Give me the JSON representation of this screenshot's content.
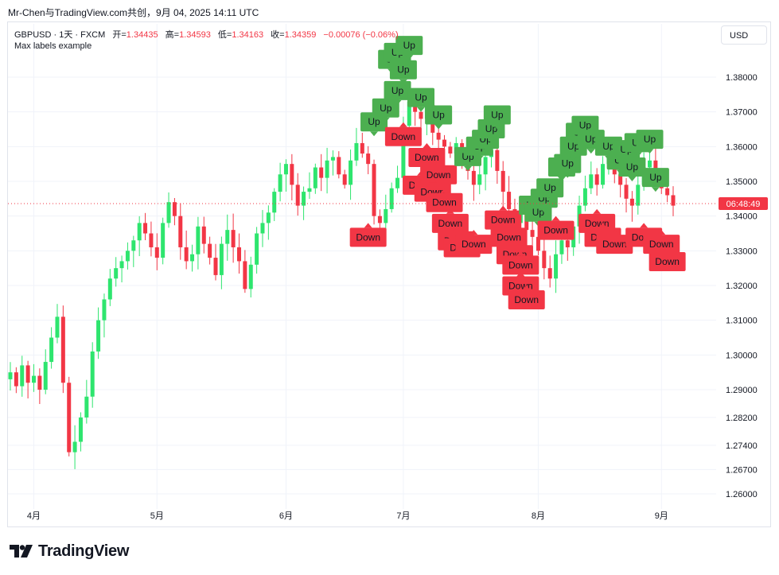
{
  "caption": "Mr-Chen与TradingView.com共创，9月 04, 2025 14:11 UTC",
  "legend": {
    "symbol": "GBPUSD · 1天 · FXCM",
    "open_label": "开=",
    "open": "1.34435",
    "high_label": "高=",
    "high": "1.34593",
    "low_label": "低=",
    "low": "1.34163",
    "close_label": "收=",
    "close": "1.34359",
    "change": "−0.00076 (−0.06%)",
    "indicator": "Max labels example"
  },
  "currency_button": "USD",
  "brand": "TradingView",
  "colors": {
    "up": "#22ab94",
    "down": "#f23645",
    "candle_up": "#2ee56e",
    "candle_down": "#f23645",
    "label_up": "#4caf50",
    "label_down": "#f23645",
    "grid": "#f0f3fa"
  },
  "chart_data": {
    "type": "candlestick",
    "y_axis": {
      "ticks": [
        1.26,
        1.267,
        1.274,
        1.282,
        1.29,
        1.3,
        1.31,
        1.32,
        1.33,
        1.34,
        1.35,
        1.36,
        1.37,
        1.38
      ],
      "tick_labels": [
        "1.26000",
        "1.26700",
        "1.27400",
        "1.28200",
        "1.29000",
        "1.30000",
        "1.31000",
        "1.32000",
        "1.33000",
        "1.34000",
        "1.35000",
        "1.36000",
        "1.37000",
        "1.38000"
      ]
    },
    "x_axis": {
      "month_ticks": [
        {
          "label": "4月",
          "index": 4
        },
        {
          "label": "5月",
          "index": 25
        },
        {
          "label": "6月",
          "index": 47
        },
        {
          "label": "7月",
          "index": 67
        },
        {
          "label": "8月",
          "index": 90
        },
        {
          "label": "9月",
          "index": 111
        }
      ]
    },
    "price_tag": "06:48:49",
    "last_price": 1.34359,
    "closes": [
      1.295,
      1.291,
      1.297,
      1.292,
      1.294,
      1.29,
      1.298,
      1.305,
      1.311,
      1.292,
      1.272,
      1.275,
      1.282,
      1.288,
      1.301,
      1.31,
      1.316,
      1.322,
      1.325,
      1.327,
      1.33,
      1.333,
      1.338,
      1.335,
      1.331,
      1.328,
      1.338,
      1.344,
      1.34,
      1.331,
      1.327,
      1.329,
      1.337,
      1.332,
      1.328,
      1.323,
      1.332,
      1.336,
      1.331,
      1.327,
      1.319,
      1.326,
      1.335,
      1.338,
      1.341,
      1.347,
      1.352,
      1.355,
      1.349,
      1.343,
      1.347,
      1.348,
      1.354,
      1.351,
      1.356,
      1.357,
      1.352,
      1.349,
      1.356,
      1.361,
      1.358,
      1.355,
      1.34,
      1.338,
      1.342,
      1.348,
      1.351,
      1.366,
      1.373,
      1.37,
      1.368,
      1.372,
      1.364,
      1.362,
      1.36,
      1.358,
      1.361,
      1.357,
      1.353,
      1.349,
      1.352,
      1.357,
      1.359,
      1.353,
      1.347,
      1.342,
      1.338,
      1.341,
      1.336,
      1.334,
      1.33,
      1.325,
      1.322,
      1.329,
      1.333,
      1.331,
      1.337,
      1.343,
      1.348,
      1.352,
      1.349,
      1.355,
      1.358,
      1.352,
      1.349,
      1.345,
      1.343,
      1.349,
      1.354,
      1.356,
      1.352,
      1.348,
      1.346,
      1.343
    ],
    "signals": [
      {
        "type": "Up",
        "index": 62,
        "price": 1.363
      },
      {
        "type": "Down",
        "index": 61,
        "price": 1.338
      },
      {
        "type": "Up",
        "index": 64,
        "price": 1.367
      },
      {
        "type": "Up",
        "index": 65,
        "price": 1.381
      },
      {
        "type": "Up",
        "index": 66,
        "price": 1.383
      },
      {
        "type": "Up",
        "index": 67,
        "price": 1.378
      },
      {
        "type": "Up",
        "index": 68,
        "price": 1.385
      },
      {
        "type": "Up",
        "index": 66,
        "price": 1.372
      },
      {
        "type": "Down",
        "index": 67,
        "price": 1.367
      },
      {
        "type": "Up",
        "index": 70,
        "price": 1.37
      },
      {
        "type": "Down",
        "index": 71,
        "price": 1.361
      },
      {
        "type": "Down",
        "index": 70,
        "price": 1.353
      },
      {
        "type": "Up",
        "index": 73,
        "price": 1.365
      },
      {
        "type": "Down",
        "index": 73,
        "price": 1.356
      },
      {
        "type": "Down",
        "index": 72,
        "price": 1.351
      },
      {
        "type": "Down",
        "index": 74,
        "price": 1.348
      },
      {
        "type": "Down",
        "index": 75,
        "price": 1.342
      },
      {
        "type": "Down",
        "index": 76,
        "price": 1.337
      },
      {
        "type": "Down",
        "index": 77,
        "price": 1.335
      },
      {
        "type": "Up",
        "index": 78,
        "price": 1.353
      },
      {
        "type": "Down",
        "index": 79,
        "price": 1.336
      },
      {
        "type": "Up",
        "index": 80,
        "price": 1.356
      },
      {
        "type": "Up",
        "index": 81,
        "price": 1.358
      },
      {
        "type": "Up",
        "index": 82,
        "price": 1.361
      },
      {
        "type": "Up",
        "index": 83,
        "price": 1.365
      },
      {
        "type": "Down",
        "index": 84,
        "price": 1.343
      },
      {
        "type": "Down",
        "index": 85,
        "price": 1.338
      },
      {
        "type": "Down",
        "index": 86,
        "price": 1.333
      },
      {
        "type": "Down",
        "index": 87,
        "price": 1.33
      },
      {
        "type": "Down",
        "index": 87,
        "price": 1.324
      },
      {
        "type": "Down",
        "index": 88,
        "price": 1.32
      },
      {
        "type": "Up",
        "index": 89,
        "price": 1.339
      },
      {
        "type": "Up",
        "index": 90,
        "price": 1.337
      },
      {
        "type": "Up",
        "index": 91,
        "price": 1.341
      },
      {
        "type": "Up",
        "index": 92,
        "price": 1.344
      },
      {
        "type": "Down",
        "index": 93,
        "price": 1.34
      },
      {
        "type": "Up",
        "index": 94,
        "price": 1.35
      },
      {
        "type": "Up",
        "index": 95,
        "price": 1.351
      },
      {
        "type": "Up",
        "index": 96,
        "price": 1.356
      },
      {
        "type": "Up",
        "index": 97,
        "price": 1.36
      },
      {
        "type": "Up",
        "index": 98,
        "price": 1.362
      },
      {
        "type": "Up",
        "index": 99,
        "price": 1.358
      },
      {
        "type": "Down",
        "index": 100,
        "price": 1.342
      },
      {
        "type": "Down",
        "index": 101,
        "price": 1.338
      },
      {
        "type": "Up",
        "index": 102,
        "price": 1.356
      },
      {
        "type": "Down",
        "index": 103,
        "price": 1.336
      },
      {
        "type": "Up",
        "index": 104,
        "price": 1.352
      },
      {
        "type": "Up",
        "index": 105,
        "price": 1.355
      },
      {
        "type": "Up",
        "index": 106,
        "price": 1.35
      },
      {
        "type": "Up",
        "index": 107,
        "price": 1.357
      },
      {
        "type": "Down",
        "index": 108,
        "price": 1.338
      },
      {
        "type": "Up",
        "index": 109,
        "price": 1.358
      },
      {
        "type": "Up",
        "index": 110,
        "price": 1.347
      },
      {
        "type": "Down",
        "index": 111,
        "price": 1.336
      },
      {
        "type": "Down",
        "index": 112,
        "price": 1.331
      }
    ]
  }
}
